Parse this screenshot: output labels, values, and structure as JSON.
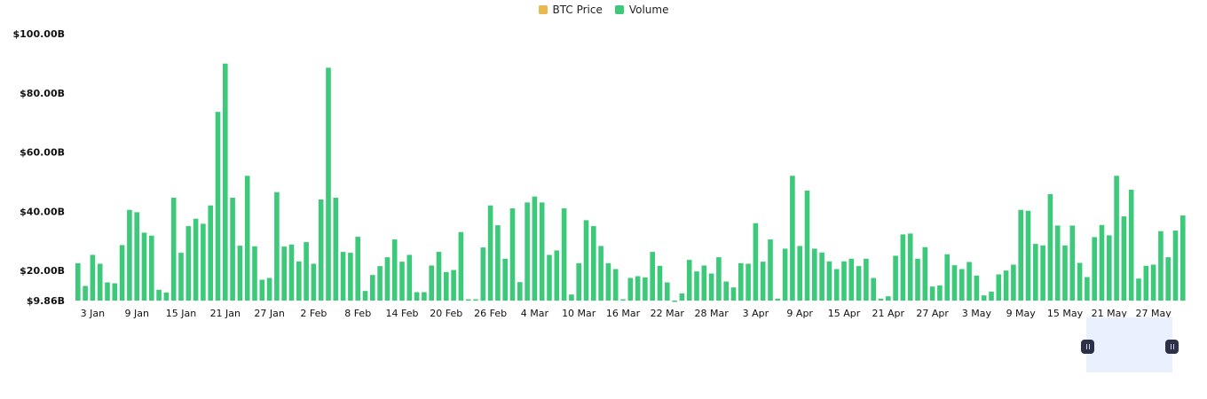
{
  "legend": {
    "items": [
      {
        "label": "BTC Price",
        "color": "#E9B84F"
      },
      {
        "label": "Volume",
        "color": "#3CC97A"
      }
    ]
  },
  "colors": {
    "bar": "#3CC97A",
    "brush": "#EAF0FE",
    "handle": "#2B3247"
  },
  "chart_data": {
    "type": "bar",
    "title": "",
    "xlabel": "",
    "ylabel": "",
    "ylim": [
      9.86,
      100
    ],
    "y_ticks": [
      {
        "value": 100,
        "label": "$100.00B"
      },
      {
        "value": 80,
        "label": "$80.00B"
      },
      {
        "value": 60,
        "label": "$60.00B"
      },
      {
        "value": 40,
        "label": "$40.00B"
      },
      {
        "value": 20,
        "label": "$20.00B"
      },
      {
        "value": 9.86,
        "label": "$9.86B"
      }
    ],
    "x_ticks": [
      {
        "index": 2,
        "label": "3 Jan"
      },
      {
        "index": 8,
        "label": "9 Jan"
      },
      {
        "index": 14,
        "label": "15 Jan"
      },
      {
        "index": 20,
        "label": "21 Jan"
      },
      {
        "index": 26,
        "label": "27 Jan"
      },
      {
        "index": 32,
        "label": "2 Feb"
      },
      {
        "index": 38,
        "label": "8 Feb"
      },
      {
        "index": 44,
        "label": "14 Feb"
      },
      {
        "index": 50,
        "label": "20 Feb"
      },
      {
        "index": 56,
        "label": "26 Feb"
      },
      {
        "index": 62,
        "label": "4 Mar"
      },
      {
        "index": 68,
        "label": "10 Mar"
      },
      {
        "index": 74,
        "label": "16 Mar"
      },
      {
        "index": 80,
        "label": "22 Mar"
      },
      {
        "index": 86,
        "label": "28 Mar"
      },
      {
        "index": 92,
        "label": "3 Apr"
      },
      {
        "index": 98,
        "label": "9 Apr"
      },
      {
        "index": 104,
        "label": "15 Apr"
      },
      {
        "index": 110,
        "label": "21 Apr"
      },
      {
        "index": 116,
        "label": "27 Apr"
      },
      {
        "index": 122,
        "label": "3 May"
      },
      {
        "index": 128,
        "label": "9 May"
      },
      {
        "index": 134,
        "label": "15 May"
      },
      {
        "index": 140,
        "label": "21 May"
      },
      {
        "index": 146,
        "label": "27 May"
      }
    ],
    "series": [
      {
        "name": "Volume",
        "values": [
          22.5,
          14.8,
          25.3,
          22.3,
          16.0,
          15.7,
          28.6,
          40.5,
          39.7,
          32.8,
          31.8,
          13.5,
          12.6,
          44.6,
          26.0,
          35.0,
          37.5,
          35.8,
          42.0,
          73.6,
          89.9,
          44.6,
          28.4,
          52.0,
          28.2,
          16.9,
          17.5,
          46.5,
          28.1,
          28.8,
          23.1,
          29.6,
          22.3,
          44.0,
          88.5,
          44.6,
          26.3,
          26.0,
          31.4,
          13.1,
          18.5,
          21.5,
          24.5,
          30.5,
          23.0,
          25.3,
          12.7,
          12.7,
          21.7,
          26.3,
          19.5,
          20.2,
          33.0,
          10.3,
          10.3,
          27.8,
          42.0,
          35.3,
          24.0,
          41.0,
          16.1,
          43.0,
          45.0,
          43.0,
          25.3,
          26.8,
          41.0,
          11.9,
          22.5,
          37.0,
          35.0,
          28.3,
          22.5,
          20.5,
          10.3,
          17.5,
          18.1,
          17.7,
          26.3,
          21.6,
          16.0,
          9.86,
          12.3,
          23.6,
          19.7,
          21.7,
          19.0,
          24.5,
          16.3,
          14.3,
          22.5,
          22.3,
          36.0,
          23.0,
          30.5,
          10.5,
          27.4,
          52.0,
          28.3,
          47.0,
          27.4,
          26.1,
          23.1,
          20.5,
          23.1,
          24.0,
          21.5,
          24.0,
          17.5,
          10.5,
          11.3,
          25.0,
          32.2,
          32.5,
          24.0,
          27.9,
          14.6,
          15.0,
          25.5,
          21.8,
          20.5,
          22.9,
          18.3,
          11.6,
          12.9,
          18.7,
          20.0,
          22.0,
          40.5,
          40.2,
          29.0,
          28.5,
          45.8,
          35.2,
          28.5,
          35.2,
          22.6,
          17.8,
          31.3,
          35.4,
          31.9,
          52.0,
          38.3,
          47.3,
          17.3,
          21.6,
          22.0,
          33.3,
          24.5,
          33.5,
          38.6
        ]
      }
    ],
    "grid": false,
    "legend_position": "top-center"
  }
}
